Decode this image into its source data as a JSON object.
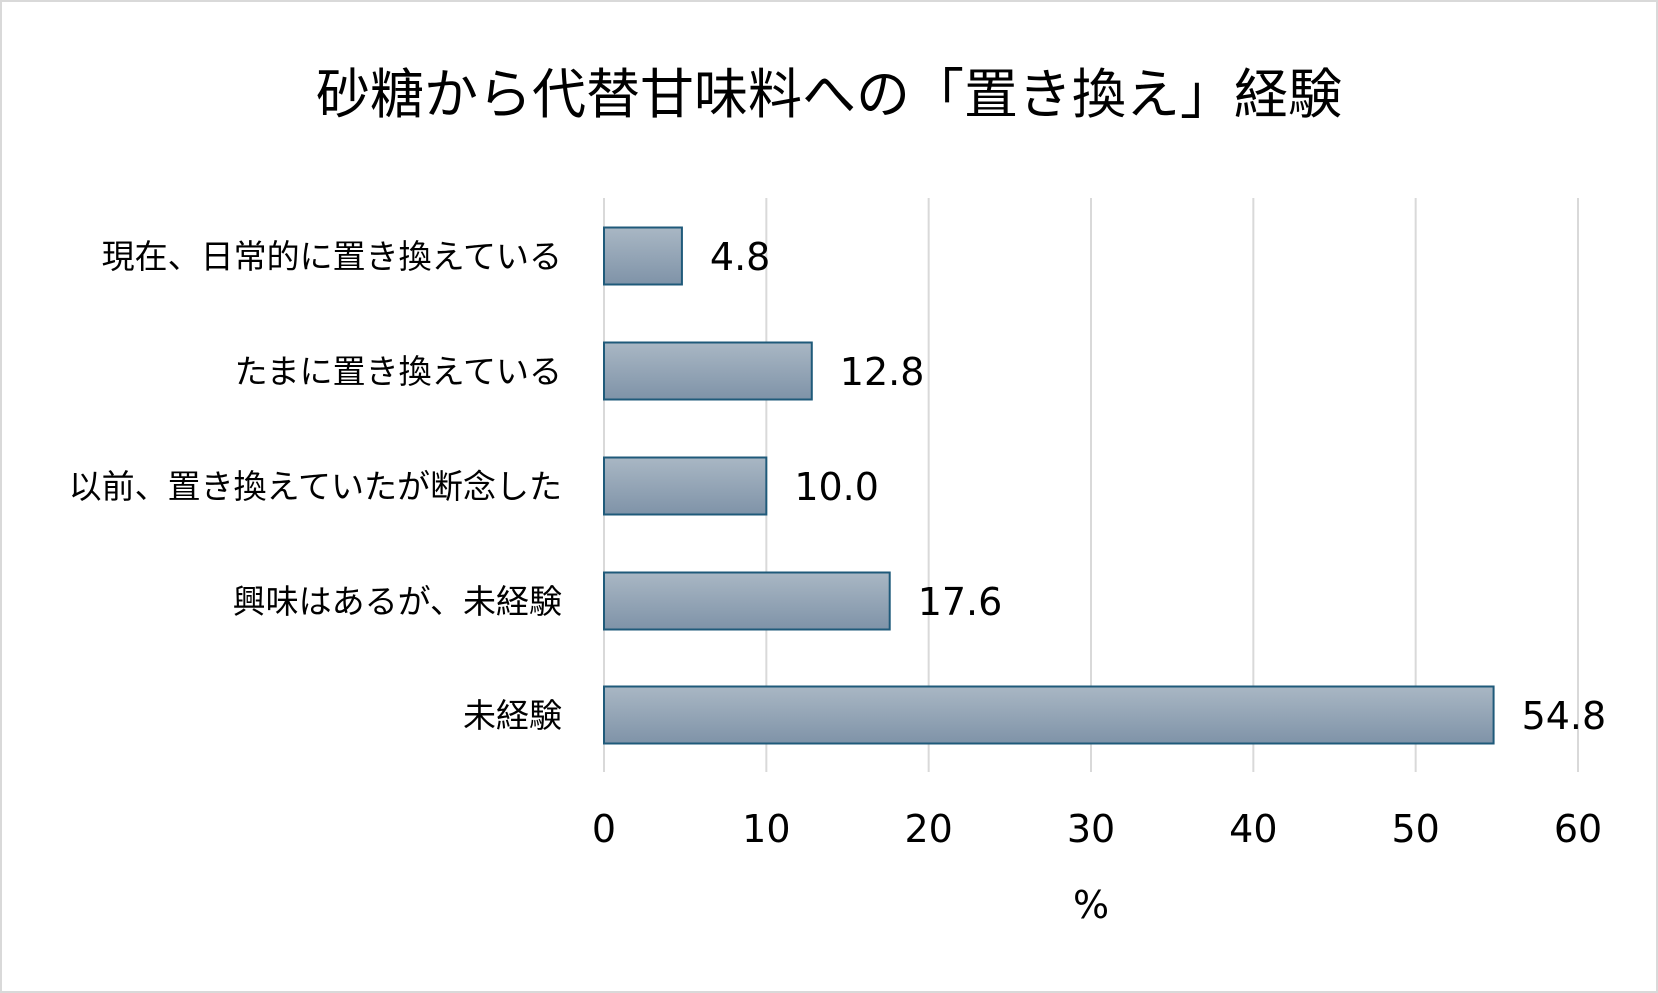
{
  "chart_data": {
    "type": "bar",
    "orientation": "horizontal",
    "title": "砂糖から代替甘味料への「置き換え」経験",
    "xlabel": "%",
    "ylabel": "",
    "categories": [
      "現在、日常的に置き換えている",
      "たまに置き換えている",
      "以前、置き換えていたが断念した",
      "興味はあるが、未経験",
      "未経験"
    ],
    "values": [
      4.8,
      12.8,
      10.0,
      17.6,
      54.8
    ],
    "value_labels": [
      "4.8",
      "12.8",
      "10.0",
      "17.6",
      "54.8"
    ],
    "xlim": [
      0,
      60
    ],
    "xticks": [
      0,
      10,
      20,
      30,
      40,
      50,
      60
    ],
    "grid": true,
    "legend": "none",
    "colors": {
      "bar_top": "#a9b7c4",
      "bar_bottom": "#7f93a8",
      "bar_border": "#1f5a7a",
      "grid": "#d9d9d9"
    }
  }
}
